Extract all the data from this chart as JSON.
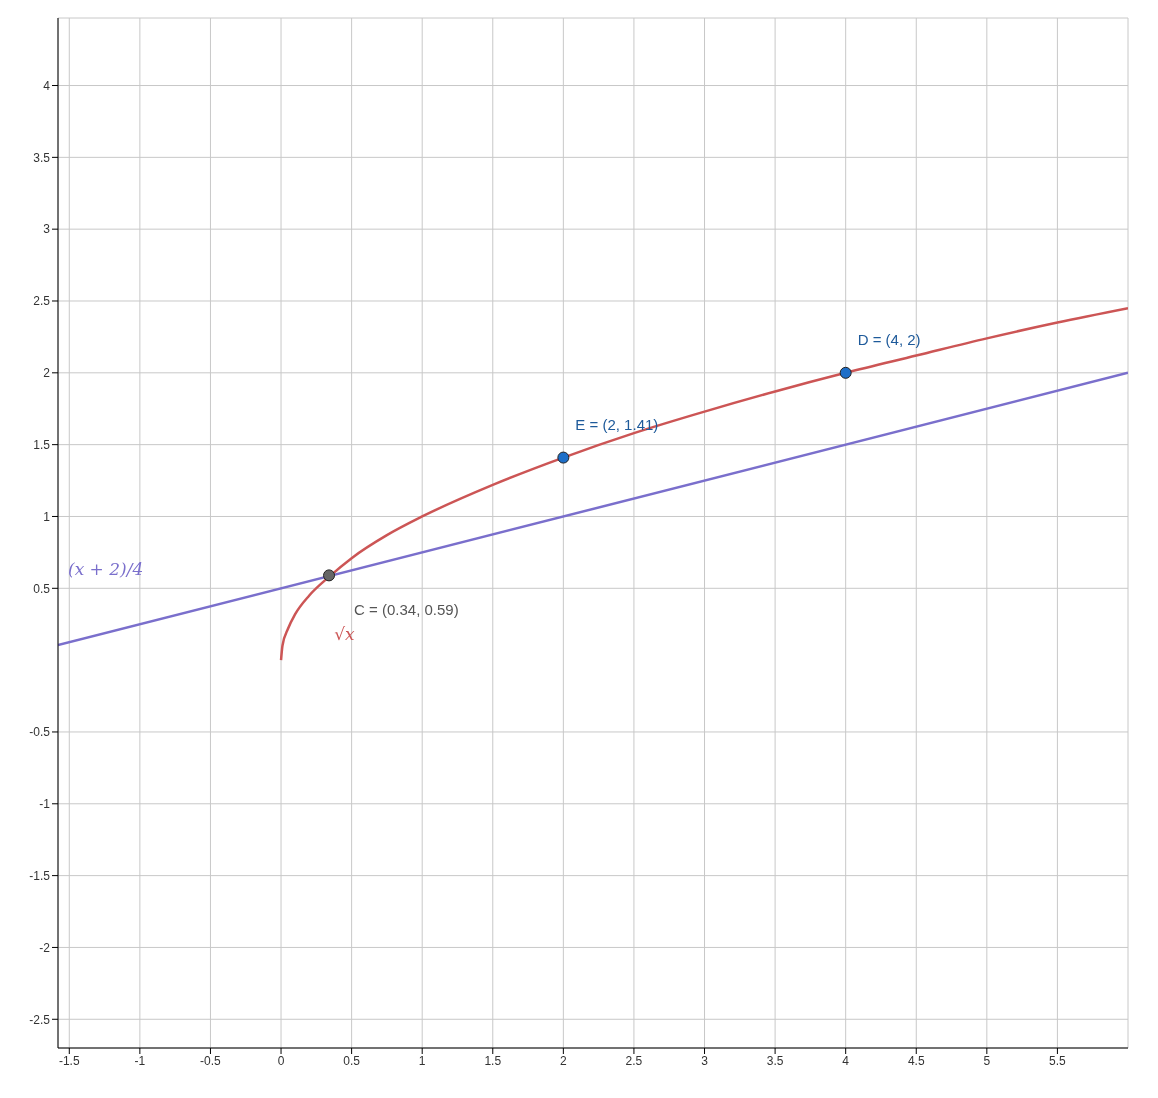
{
  "chart_data": {
    "type": "line",
    "xlim": [
      -1.58,
      6
    ],
    "ylim": [
      -2.7,
      4.47
    ],
    "xticks": [
      -1.5,
      -1,
      -0.5,
      0,
      0.5,
      1,
      1.5,
      2,
      2.5,
      3,
      3.5,
      4,
      4.5,
      5,
      5.5
    ],
    "yticks": [
      -2.5,
      -2,
      -1.5,
      -1,
      -0.5,
      0.5,
      1,
      1.5,
      2,
      2.5,
      3,
      3.5,
      4
    ],
    "grid": true,
    "series": [
      {
        "name": "√x",
        "color": "#cc5555",
        "marker": "none",
        "x": [
          0,
          0.01,
          0.05,
          0.1,
          0.2,
          0.34,
          0.5,
          0.75,
          1,
          1.5,
          2,
          2.5,
          3,
          3.5,
          4,
          4.5,
          5,
          5.5,
          6
        ],
        "values": [
          0,
          0.1,
          0.22,
          0.32,
          0.45,
          0.58,
          0.71,
          0.87,
          1,
          1.22,
          1.41,
          1.58,
          1.73,
          1.87,
          2,
          2.12,
          2.24,
          2.35,
          2.45
        ]
      },
      {
        "name": "(x + 2)/4",
        "color": "#7a6fcc",
        "marker": "none",
        "x": [
          -1.58,
          6
        ],
        "values": [
          0.105,
          2
        ]
      },
      {
        "type": "scatter",
        "marker": "circle",
        "colors": [
          "#666666",
          "#1e6fc8",
          "#1e6fc8"
        ],
        "x": [
          0.34,
          2,
          4
        ],
        "values": [
          0.59,
          1.41,
          2
        ]
      }
    ],
    "annotations": [
      {
        "text": "C = (0.34, 0.59)",
        "x": 0.34,
        "y": 0.59
      },
      {
        "text": "E = (2, 1.41)",
        "x": 2,
        "y": 1.41
      },
      {
        "text": "D = (4, 2)",
        "x": 4,
        "y": 2
      }
    ]
  }
}
